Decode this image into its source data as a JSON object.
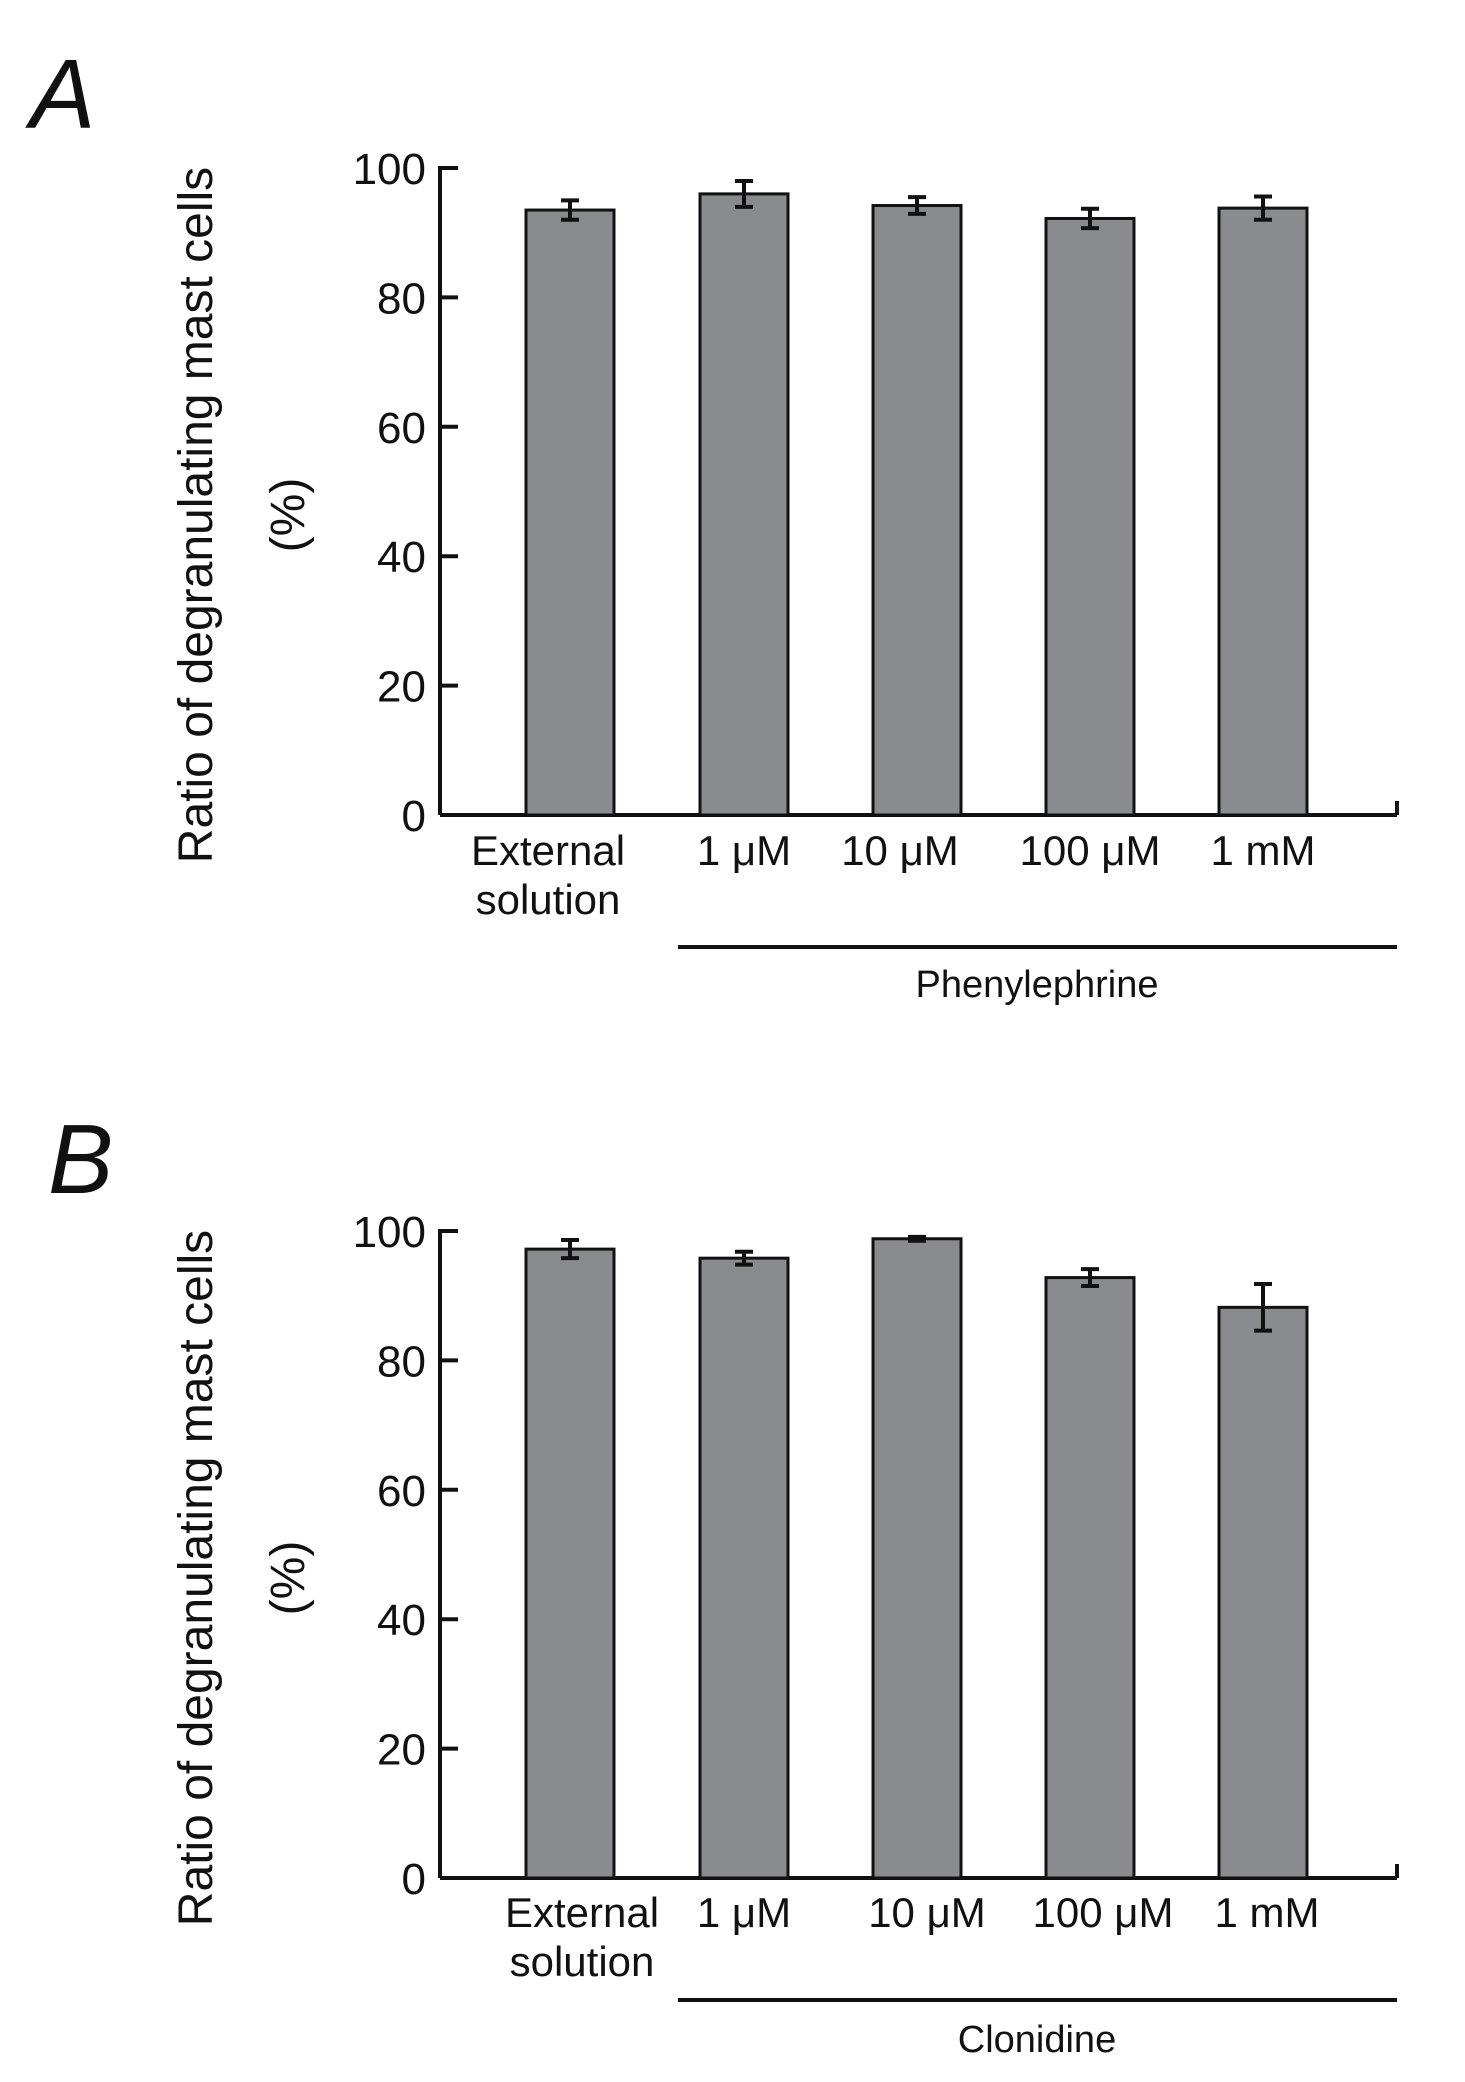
{
  "panels": [
    {
      "label": "A",
      "group_label": "Phenylephrine",
      "chart_data": {
        "type": "bar",
        "categories": [
          "External\nsolution",
          "1 μM",
          "10 μM",
          "100 μM",
          "1 mM"
        ],
        "values": [
          93.5,
          96.0,
          94.2,
          92.2,
          93.8
        ],
        "errors": [
          1.5,
          2.0,
          1.3,
          1.5,
          1.8
        ],
        "ylabel_lines": [
          "Ratio of degranulating mast cells",
          "(%)"
        ],
        "xlabel": "",
        "ylim": [
          0,
          100
        ],
        "yticks": [
          0,
          20,
          40,
          60,
          80,
          100
        ],
        "bar_color": "#8a8b8f",
        "grid": false,
        "legend": "none"
      }
    },
    {
      "label": "B",
      "group_label": "Clonidine",
      "chart_data": {
        "type": "bar",
        "categories": [
          "External\nsolution",
          "1 μM",
          "10 μM",
          "100 μM",
          "1 mM"
        ],
        "values": [
          97.2,
          95.8,
          98.8,
          92.8,
          88.2
        ],
        "errors": [
          1.4,
          1.0,
          0.3,
          1.3,
          3.6
        ],
        "ylabel_lines": [
          "Ratio of degranulating mast cells",
          "(%)"
        ],
        "xlabel": "",
        "ylim": [
          0,
          100
        ],
        "yticks": [
          0,
          20,
          40,
          60,
          80,
          100
        ],
        "bar_color": "#8a8b8f",
        "grid": false,
        "legend": "none"
      }
    }
  ]
}
